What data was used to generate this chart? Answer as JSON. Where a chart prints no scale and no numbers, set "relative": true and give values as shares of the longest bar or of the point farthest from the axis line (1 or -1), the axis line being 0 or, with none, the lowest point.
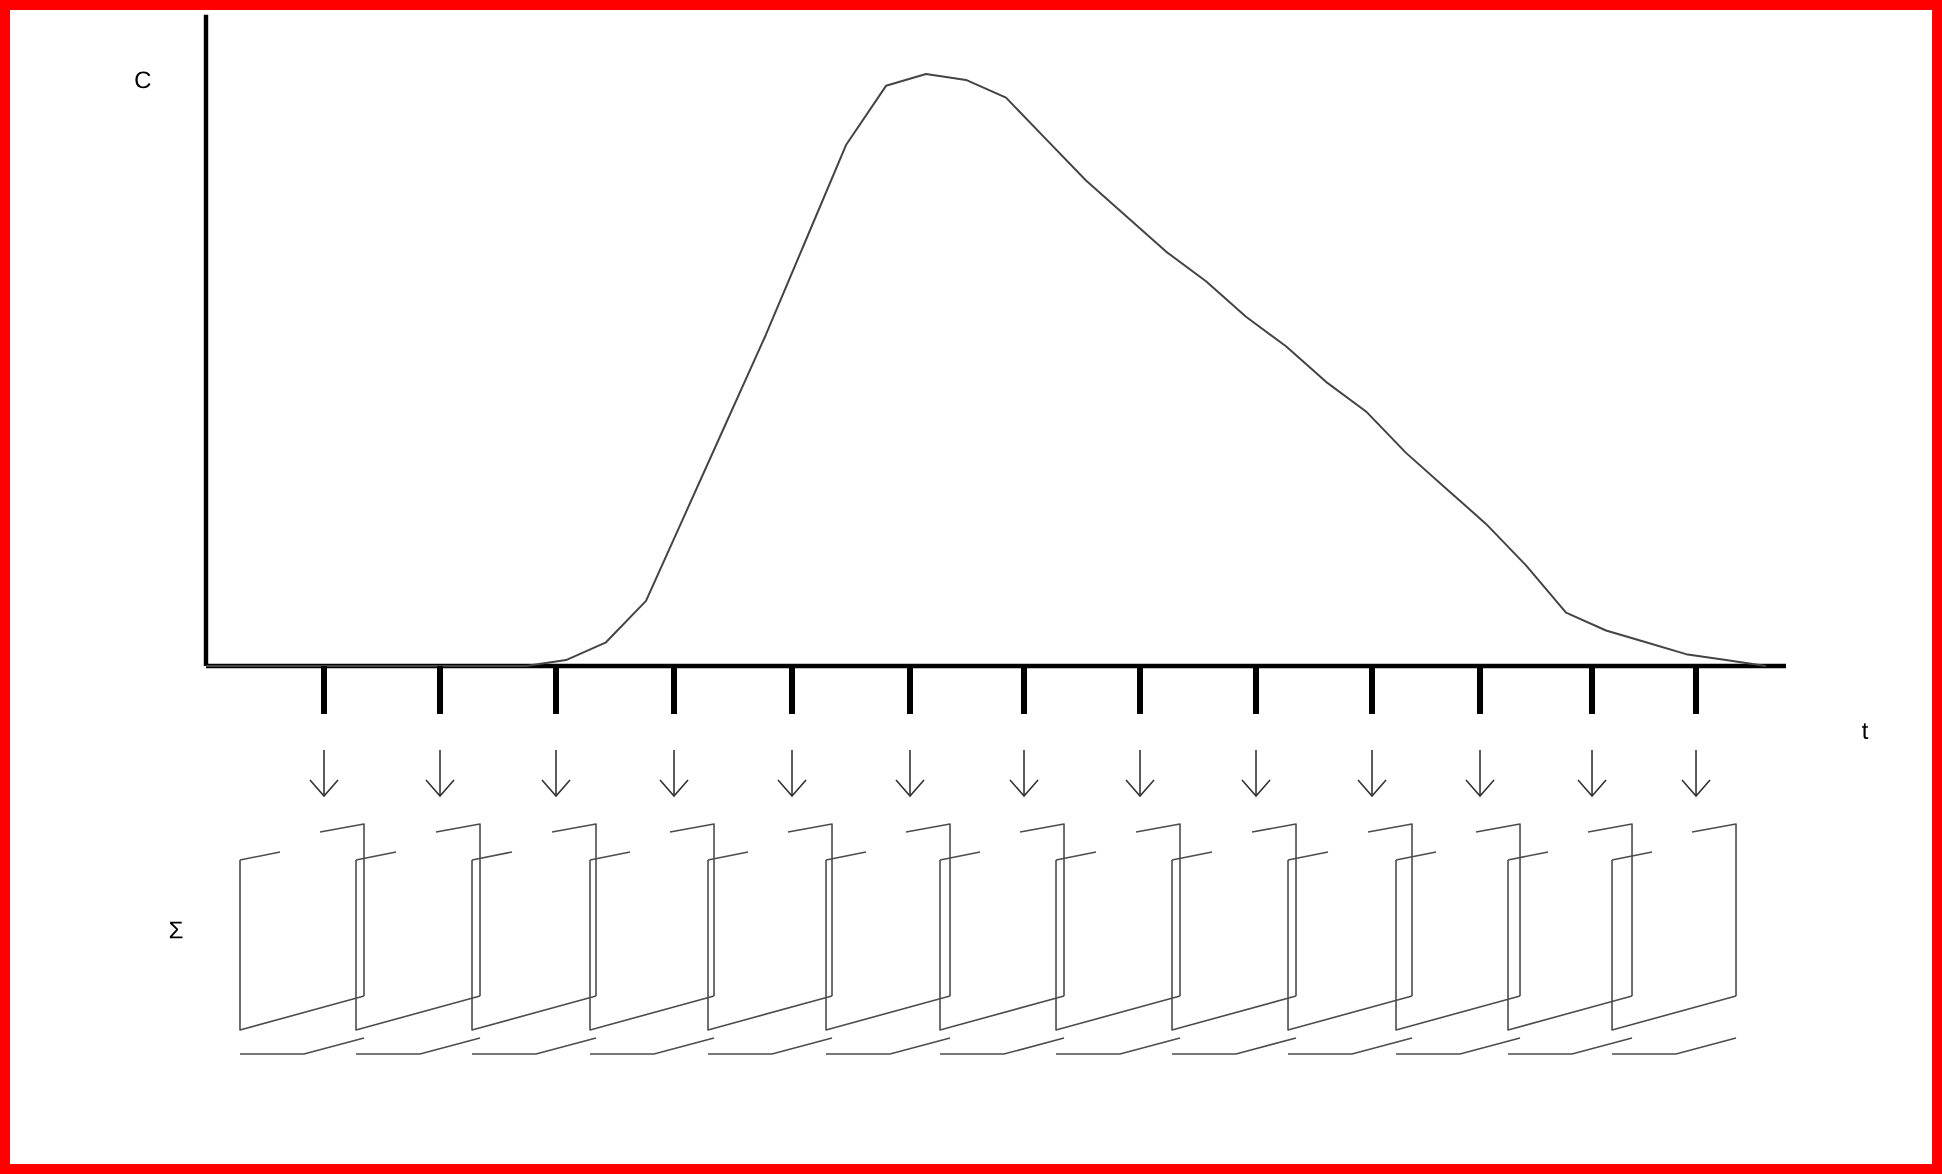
{
  "chart_data": {
    "type": "line",
    "relative": true,
    "xlabel": "t",
    "ylabel": "C",
    "categories": [
      null,
      null,
      null,
      null,
      null,
      null,
      null,
      null,
      null,
      null,
      null,
      null,
      null,
      null,
      null,
      null,
      null,
      null,
      null,
      null,
      null,
      null,
      null,
      null,
      null,
      null,
      null,
      null,
      null,
      null,
      null,
      null,
      null,
      null,
      null,
      null,
      null,
      null,
      null,
      null
    ],
    "color": "#444444",
    "values": [
      0,
      0,
      0,
      0,
      0,
      0,
      0,
      0,
      0,
      0.01,
      0.04,
      0.11,
      0.26,
      0.41,
      0.56,
      0.72,
      0.88,
      0.98,
      1.0,
      0.99,
      0.96,
      0.89,
      0.82,
      0.76,
      0.7,
      0.65,
      0.59,
      0.54,
      0.48,
      0.43,
      0.36,
      0.3,
      0.24,
      0.17,
      0.09,
      0.06,
      0.04,
      0.02,
      0.01,
      0
    ],
    "annotations": [
      "Σ"
    ]
  }
}
